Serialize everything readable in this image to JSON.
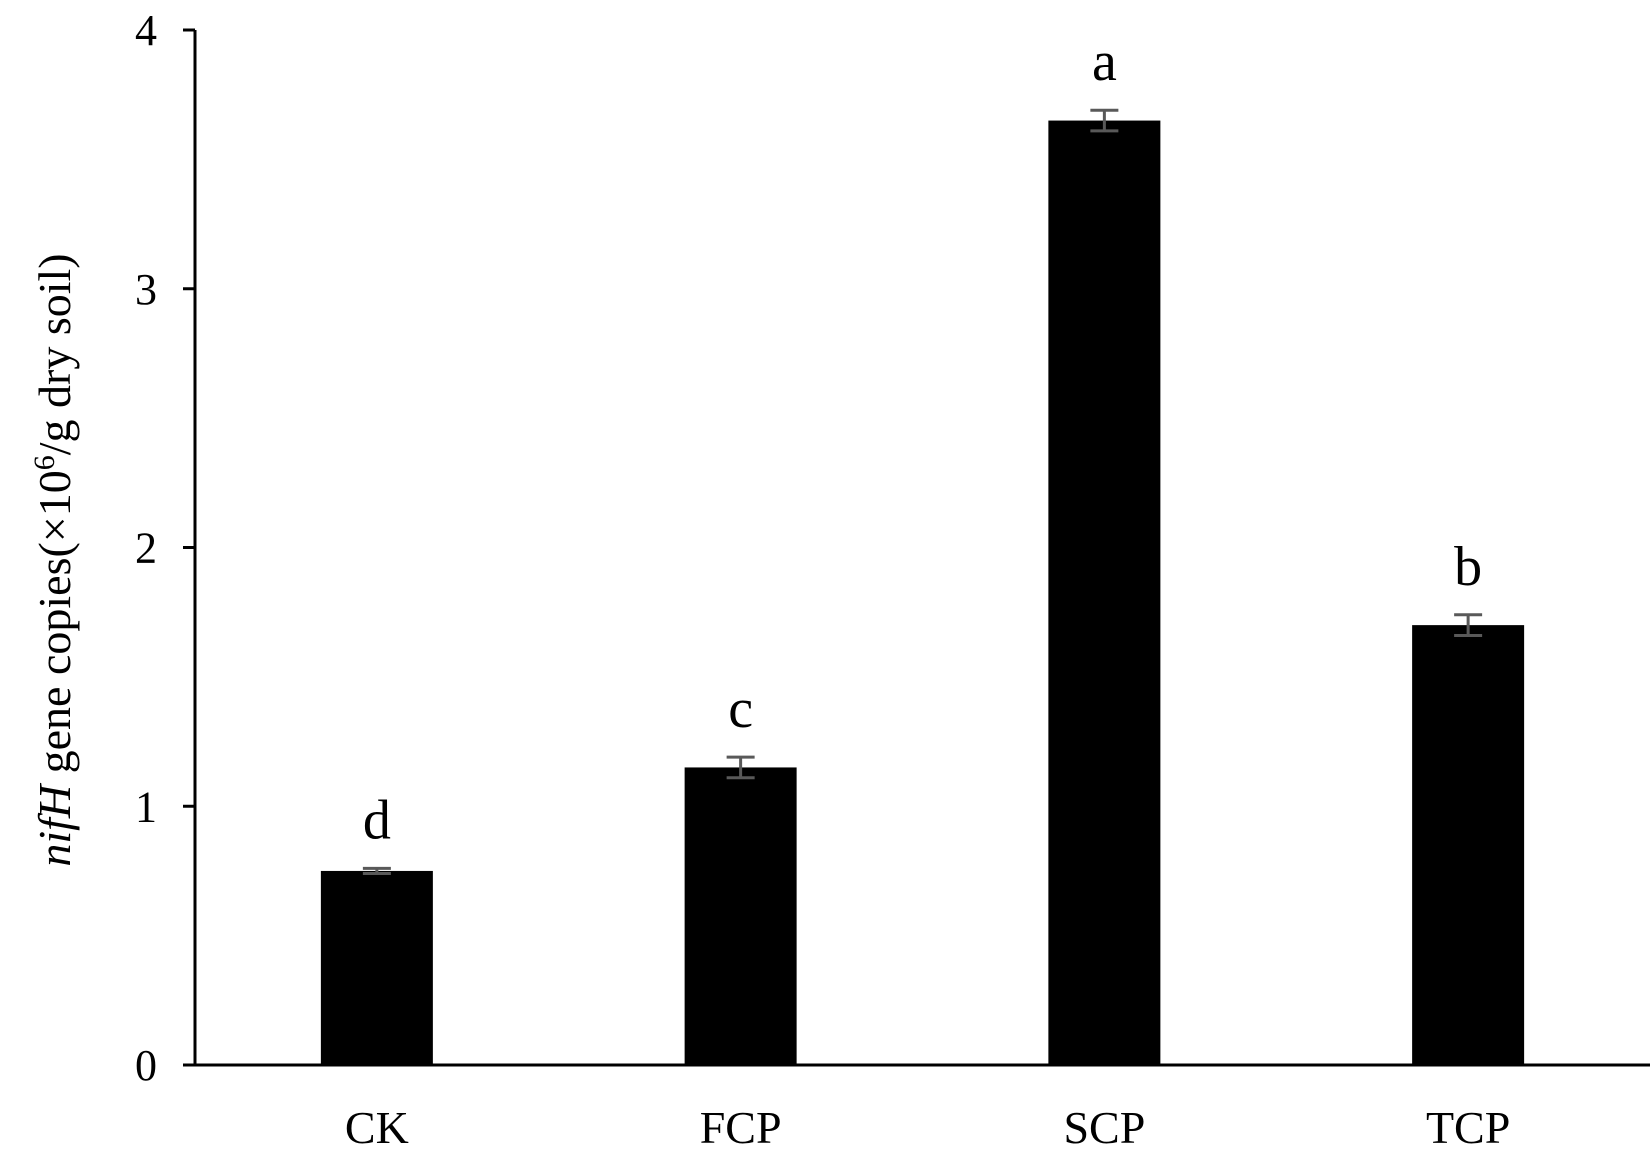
{
  "chart_data": {
    "type": "bar",
    "categories": [
      "CK",
      "FCP",
      "SCP",
      "TCP"
    ],
    "values": [
      0.75,
      1.15,
      3.65,
      1.7
    ],
    "errors": [
      0.01,
      0.04,
      0.04,
      0.04
    ],
    "significance_letters": [
      "d",
      "c",
      "a",
      "b"
    ],
    "ylim": [
      0,
      4
    ],
    "yticks": [
      0,
      1,
      2,
      3,
      4
    ],
    "ylabel": {
      "italic": "nifH",
      "pre_sup": " gene copies(×10",
      "sup": "6",
      "post_sup": "/g dry soil)"
    },
    "xlabel": "",
    "title": "",
    "grid": false,
    "legend": "none",
    "colors": {
      "bar": "#000000",
      "error_bar": "#595959",
      "axis": "#000000"
    }
  }
}
